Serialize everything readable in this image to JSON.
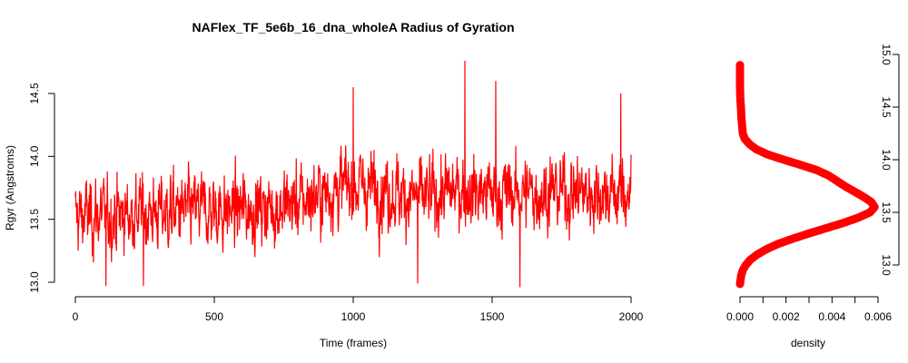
{
  "chart_data": [
    {
      "type": "line",
      "title": "NAFlex_TF_5e6b_16_dna_wholeA Radius of Gyration",
      "xlabel": "Time (frames)",
      "ylabel": "Rgyr (Angstroms)",
      "xlim": [
        0,
        2000
      ],
      "ylim": [
        13.0,
        14.5
      ],
      "xticks": [
        "0",
        "500",
        "1000",
        "1500",
        "2000"
      ],
      "yticks": [
        "13.0",
        "13.5",
        "14.0",
        "14.5"
      ],
      "grid": false,
      "series_color": "#ff0000",
      "n_frames": 2000,
      "mean_by_segment": {
        "x": [
          0,
          250,
          500,
          750,
          1000,
          1100,
          1250,
          1400,
          1500,
          1750,
          2000
        ],
        "y": [
          13.52,
          13.55,
          13.57,
          13.6,
          13.78,
          13.74,
          13.66,
          13.74,
          13.7,
          13.72,
          13.7
        ]
      },
      "range": {
        "min": 12.96,
        "max": 14.76
      },
      "notable_peaks": [
        {
          "x": 1402,
          "y": 14.76
        },
        {
          "x": 1000,
          "y": 14.55
        },
        {
          "x": 1513,
          "y": 14.6
        },
        {
          "x": 1963,
          "y": 14.5
        }
      ],
      "notable_troughs": [
        {
          "x": 1600,
          "y": 12.96
        },
        {
          "x": 110,
          "y": 12.97
        },
        {
          "x": 245,
          "y": 12.97
        },
        {
          "x": 1232,
          "y": 12.99
        }
      ]
    },
    {
      "type": "line",
      "title": "",
      "xlabel": "density",
      "ylabel": "",
      "xlim": [
        0,
        0.006
      ],
      "ylim": [
        13.0,
        15.0
      ],
      "xticks": [
        "0.000",
        "0.002",
        "0.004",
        "0.006"
      ],
      "yticks": [
        "13.0",
        "13.5",
        "14.0",
        "14.5",
        "15.0"
      ],
      "y_axis_side": "right",
      "series_color": "#ff0000",
      "points": [
        [
          12.82,
          0.0
        ],
        [
          12.9,
          5e-05
        ],
        [
          12.95,
          0.00012
        ],
        [
          13.0,
          0.00025
        ],
        [
          13.05,
          0.00045
        ],
        [
          13.1,
          0.00075
        ],
        [
          13.15,
          0.00115
        ],
        [
          13.2,
          0.00165
        ],
        [
          13.25,
          0.0023
        ],
        [
          13.3,
          0.003
        ],
        [
          13.35,
          0.00375
        ],
        [
          13.4,
          0.0045
        ],
        [
          13.45,
          0.00515
        ],
        [
          13.5,
          0.00565
        ],
        [
          13.55,
          0.00585
        ],
        [
          13.6,
          0.0057
        ],
        [
          13.65,
          0.00535
        ],
        [
          13.7,
          0.00495
        ],
        [
          13.75,
          0.00455
        ],
        [
          13.8,
          0.0042
        ],
        [
          13.85,
          0.00385
        ],
        [
          13.9,
          0.00335
        ],
        [
          13.95,
          0.00265
        ],
        [
          14.0,
          0.0019
        ],
        [
          14.05,
          0.0012
        ],
        [
          14.1,
          0.0007
        ],
        [
          14.15,
          0.0004
        ],
        [
          14.2,
          0.0002
        ],
        [
          14.25,
          0.00012
        ],
        [
          14.3,
          0.0001
        ],
        [
          14.35,
          8e-05
        ],
        [
          14.4,
          6e-05
        ],
        [
          14.45,
          5e-05
        ],
        [
          14.5,
          4e-05
        ],
        [
          14.55,
          2e-05
        ],
        [
          14.6,
          1e-05
        ],
        [
          14.7,
          0.0
        ],
        [
          14.8,
          0.0
        ],
        [
          14.9,
          0.0
        ]
      ]
    }
  ]
}
